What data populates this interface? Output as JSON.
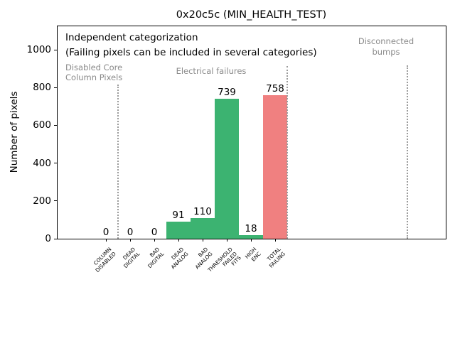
{
  "chart_data": {
    "type": "bar",
    "title": "0x20c5c (MIN_HEALTH_TEST)",
    "xlabel": "",
    "ylabel": "Number of pixels",
    "ylim": [
      0,
      1128
    ],
    "yticks": [
      0,
      200,
      400,
      600,
      800,
      1000
    ],
    "grid": false,
    "categories": [
      "COLUMN\nDISABLED",
      "DEAD\nDIGITAL",
      "BAD\nDIGITAL",
      "DEAD\nANALOG",
      "BAD\nANALOG",
      "THRESHOLD\nFAILED\nFITS",
      "HIGH\nENC",
      "TOTAL\nFAILING"
    ],
    "values": [
      0,
      0,
      0,
      91,
      110,
      739,
      18,
      758
    ],
    "bar_colors": [
      "#3cb371",
      "#3cb371",
      "#3cb371",
      "#3cb371",
      "#3cb371",
      "#3cb371",
      "#3cb371",
      "#f08080"
    ],
    "annotations": {
      "note_line1": "Independent categorization",
      "note_line2": "(Failing pixels can be included in several categories)",
      "sections": [
        {
          "label": "Disabled Core\nColumn Pixels"
        },
        {
          "label": "Electrical failures"
        },
        {
          "label": "Disconnected\nbumps"
        }
      ],
      "separator_style": "dotted"
    },
    "colors": {
      "bar_green": "#3cb371",
      "bar_red": "#f08080",
      "section_text_gray": "#8a8a8a",
      "separator_gray": "#9b9b9b"
    }
  }
}
